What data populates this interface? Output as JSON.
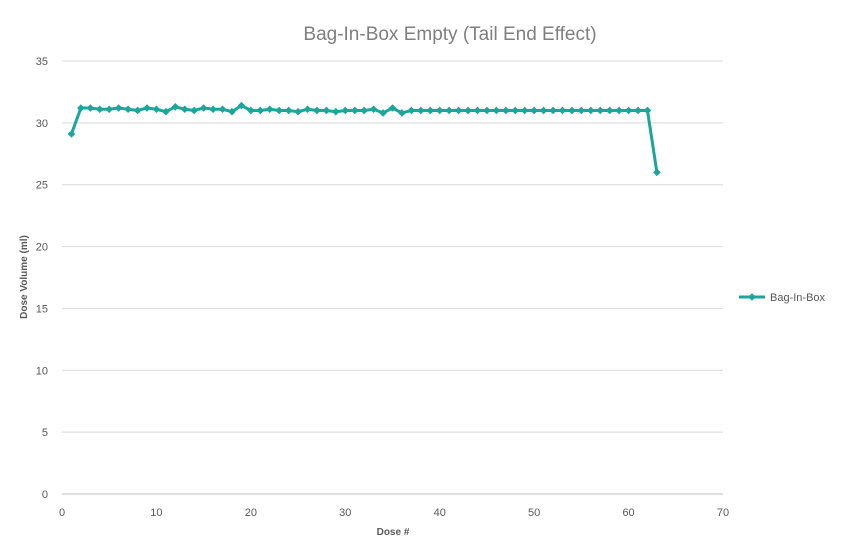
{
  "chart_data": {
    "type": "line",
    "title": "Bag-In-Box Empty (Tail End Effect)",
    "xlabel": "Dose #",
    "ylabel": "Dose Volume (ml)",
    "xlim": [
      0,
      70
    ],
    "ylim": [
      0,
      35
    ],
    "x_ticks": [
      0,
      10,
      20,
      30,
      40,
      50,
      60,
      70
    ],
    "y_ticks": [
      0,
      5,
      10,
      15,
      20,
      25,
      30,
      35
    ],
    "grid": "horizontal",
    "legend_position": "right",
    "series": [
      {
        "name": "Bag-In-Box",
        "color": "#1aa69a",
        "marker": "diamond",
        "x": [
          1,
          2,
          3,
          4,
          5,
          6,
          7,
          8,
          9,
          10,
          11,
          12,
          13,
          14,
          15,
          16,
          17,
          18,
          19,
          20,
          21,
          22,
          23,
          24,
          25,
          26,
          27,
          28,
          29,
          30,
          31,
          32,
          33,
          34,
          35,
          36,
          37,
          38,
          39,
          40,
          41,
          42,
          43,
          44,
          45,
          46,
          47,
          48,
          49,
          50,
          51,
          52,
          53,
          54,
          55,
          56,
          57,
          58,
          59,
          60,
          61,
          62,
          63
        ],
        "values": [
          29.1,
          31.2,
          31.2,
          31.1,
          31.1,
          31.2,
          31.1,
          31.0,
          31.2,
          31.1,
          30.9,
          31.3,
          31.1,
          31.0,
          31.2,
          31.1,
          31.1,
          30.9,
          31.4,
          31.0,
          31.0,
          31.1,
          31.0,
          31.0,
          30.9,
          31.1,
          31.0,
          31.0,
          30.9,
          31.0,
          31.0,
          31.0,
          31.1,
          30.8,
          31.2,
          30.8,
          31.0,
          31.0,
          31.0,
          31.0,
          31.0,
          31.0,
          31.0,
          31.0,
          31.0,
          31.0,
          31.0,
          31.0,
          31.0,
          31.0,
          31.0,
          31.0,
          31.0,
          31.0,
          31.0,
          31.0,
          31.0,
          31.0,
          31.0,
          31.0,
          31.0,
          31.0,
          26.0
        ]
      }
    ]
  }
}
